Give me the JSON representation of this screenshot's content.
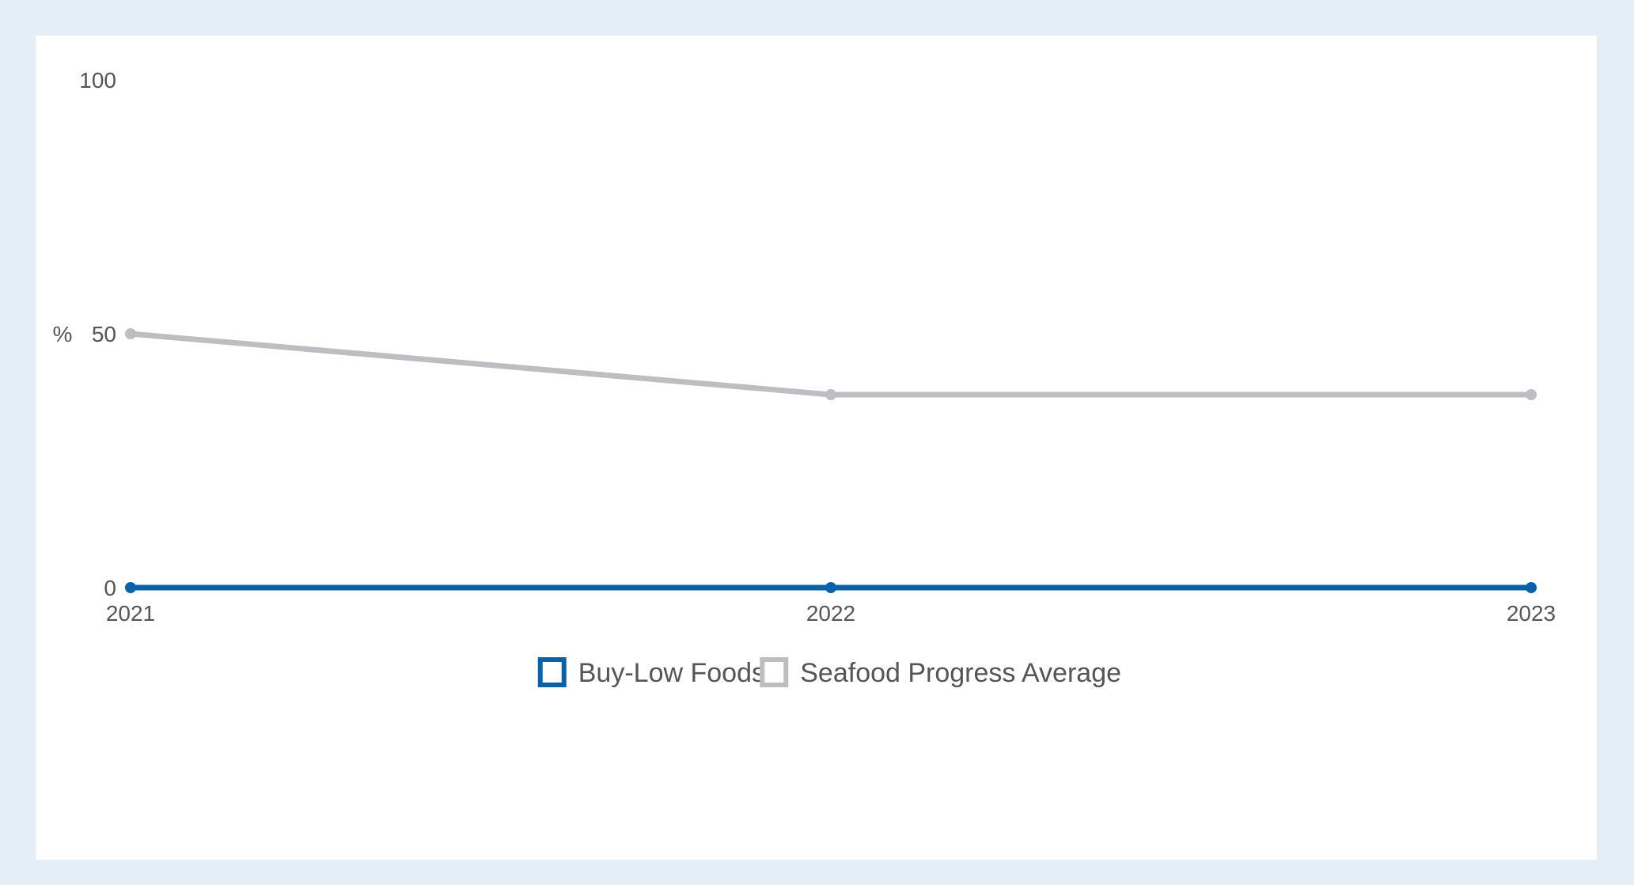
{
  "chart_data": {
    "type": "line",
    "categories": [
      "2021",
      "2022",
      "2023"
    ],
    "ylabel": "%",
    "ylim": [
      0,
      100
    ],
    "yticks": [
      "0",
      "50",
      "100"
    ],
    "grid": false,
    "legend_position": "bottom-center",
    "series": [
      {
        "name": "Buy-Low Foods",
        "values": [
          0,
          0,
          0
        ],
        "color": "#0a61a8"
      },
      {
        "name": "Seafood Progress Average",
        "values": [
          50,
          38,
          38
        ],
        "color": "#bdbdc2"
      }
    ]
  }
}
